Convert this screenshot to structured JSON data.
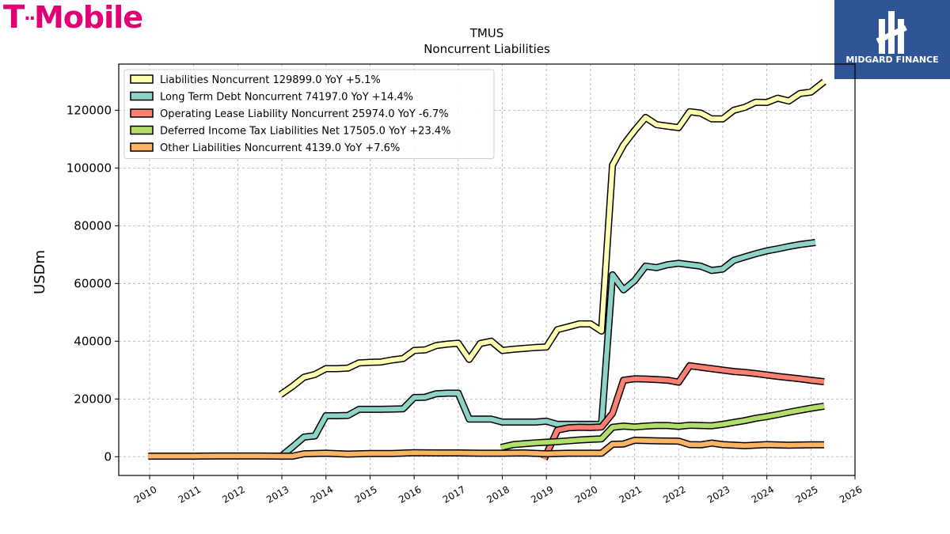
{
  "brand": {
    "logo_text": "T Mobile"
  },
  "watermark": {
    "label": "MIDGARD FINANCE",
    "color": "#2f5597"
  },
  "chart_data": {
    "type": "line",
    "title": "TMUS",
    "subtitle": "Noncurrent  Liabilities",
    "xlabel": "",
    "ylabel": "USDm",
    "xlim": [
      2009.3,
      2026.0
    ],
    "ylim": [
      -6500,
      136000
    ],
    "x_ticks": [
      2010,
      2011,
      2012,
      2013,
      2014,
      2015,
      2016,
      2017,
      2018,
      2019,
      2020,
      2021,
      2022,
      2023,
      2024,
      2025,
      2026
    ],
    "y_ticks": [
      0,
      20000,
      40000,
      60000,
      80000,
      100000,
      120000
    ],
    "y_tick_labels": [
      "0",
      "20000",
      "40000",
      "60000",
      "80000",
      "100000",
      "120000"
    ],
    "grid": true,
    "legend_position": "top-left",
    "series": [
      {
        "name": "Liabilities Noncurrent  129899.0 YoY +5.1%",
        "color": "#ffffb3",
        "x": [
          2012.97,
          2013.25,
          2013.5,
          2013.75,
          2014.0,
          2014.25,
          2014.5,
          2014.75,
          2015.0,
          2015.25,
          2015.5,
          2015.75,
          2016.0,
          2016.25,
          2016.5,
          2016.75,
          2017.0,
          2017.25,
          2017.5,
          2017.75,
          2018.0,
          2018.25,
          2018.5,
          2018.75,
          2019.0,
          2019.25,
          2019.5,
          2019.75,
          2020.0,
          2020.25,
          2020.5,
          2020.75,
          2021.0,
          2021.25,
          2021.5,
          2021.75,
          2022.0,
          2022.25,
          2022.5,
          2022.75,
          2023.0,
          2023.25,
          2023.5,
          2023.75,
          2024.0,
          2024.25,
          2024.5,
          2024.75,
          2025.0,
          2025.3
        ],
        "y": [
          21500,
          24500,
          27500,
          28500,
          30500,
          30500,
          30700,
          32500,
          32700,
          32800,
          33500,
          34000,
          36800,
          37000,
          38500,
          39000,
          39300,
          33700,
          39200,
          40000,
          36800,
          37200,
          37500,
          37800,
          38000,
          44000,
          45000,
          46000,
          46000,
          43500,
          101000,
          108000,
          113000,
          117500,
          115000,
          114500,
          114000,
          119500,
          119000,
          117000,
          117000,
          120000,
          121000,
          122800,
          122700,
          124200,
          123200,
          125800,
          126300,
          129899
        ]
      },
      {
        "name": "Long Term Debt Noncurrent  74197.0 YoY +14.4%",
        "color": "#8dd3c7",
        "x": [
          2012.97,
          2013.25,
          2013.5,
          2013.75,
          2014.0,
          2014.25,
          2014.5,
          2014.75,
          2015.0,
          2015.25,
          2015.5,
          2015.75,
          2016.0,
          2016.25,
          2016.5,
          2016.75,
          2017.0,
          2017.25,
          2017.5,
          2017.75,
          2018.0,
          2018.25,
          2018.5,
          2018.75,
          2019.0,
          2019.25,
          2019.5,
          2019.75,
          2020.0,
          2020.25,
          2020.5,
          2020.75,
          2021.0,
          2021.25,
          2021.5,
          2021.75,
          2022.0,
          2022.25,
          2022.5,
          2022.75,
          2023.0,
          2023.25,
          2023.5,
          2023.75,
          2024.0,
          2024.25,
          2024.5,
          2024.75,
          2025.1
        ],
        "y": [
          0,
          3500,
          6800,
          7200,
          14200,
          14200,
          14300,
          16400,
          16400,
          16400,
          16500,
          16600,
          20500,
          20600,
          21800,
          22000,
          22000,
          13000,
          13000,
          13000,
          12000,
          12000,
          12000,
          12000,
          12300,
          11200,
          11200,
          11200,
          11200,
          11200,
          63000,
          57800,
          61000,
          66000,
          65500,
          66500,
          67000,
          66500,
          66000,
          64500,
          65000,
          68000,
          69200,
          70300,
          71300,
          72000,
          72800,
          73500,
          74197
        ]
      },
      {
        "name": "Operating Lease Liability Noncurrent  25974.0 YoY -6.7%",
        "color": "#fb8072",
        "x": [
          2018.95,
          2019.25,
          2019.5,
          2019.75,
          2020.0,
          2020.25,
          2020.5,
          2020.75,
          2021.0,
          2021.25,
          2021.5,
          2021.75,
          2022.0,
          2022.25,
          2022.5,
          2022.75,
          2023.0,
          2023.25,
          2023.5,
          2023.75,
          2024.0,
          2024.25,
          2024.5,
          2024.75,
          2025.0,
          2025.3
        ],
        "y": [
          -800,
          9200,
          10000,
          10200,
          10100,
          10300,
          15000,
          26500,
          27000,
          26900,
          26700,
          26500,
          25800,
          31500,
          31000,
          30500,
          30000,
          29500,
          29200,
          28800,
          28300,
          27800,
          27400,
          27000,
          26500,
          25974
        ]
      },
      {
        "name": "Deferred Income Tax Liabilities Net  17505.0 YoY +23.4%",
        "color": "#b3de69",
        "x": [
          2017.97,
          2018.25,
          2018.5,
          2018.75,
          2019.0,
          2019.25,
          2019.5,
          2019.75,
          2020.0,
          2020.25,
          2020.5,
          2020.75,
          2021.0,
          2021.25,
          2021.5,
          2021.75,
          2022.0,
          2022.25,
          2022.5,
          2022.75,
          2023.0,
          2023.25,
          2023.5,
          2023.75,
          2024.0,
          2024.25,
          2024.5,
          2024.75,
          2025.0,
          2025.3
        ],
        "y": [
          3200,
          4200,
          4500,
          4800,
          5000,
          5200,
          5500,
          5800,
          6000,
          6200,
          10200,
          10600,
          10300,
          10600,
          10800,
          10800,
          10500,
          10900,
          10800,
          10700,
          11200,
          11900,
          12500,
          13300,
          13900,
          14600,
          15400,
          16100,
          16800,
          17505
        ]
      },
      {
        "name": "Other Liabilities Noncurrent  4139.0 YoY +7.6%",
        "color": "#fdb462",
        "x": [
          2009.97,
          2010.5,
          2011.0,
          2011.5,
          2012.0,
          2012.5,
          2013.0,
          2013.25,
          2013.5,
          2014.0,
          2014.5,
          2015.0,
          2015.5,
          2016.0,
          2016.5,
          2017.0,
          2017.5,
          2018.0,
          2018.5,
          2019.0,
          2019.5,
          2020.0,
          2020.25,
          2020.5,
          2020.75,
          2021.0,
          2021.5,
          2022.0,
          2022.25,
          2022.5,
          2022.75,
          2023.0,
          2023.5,
          2024.0,
          2024.5,
          2025.0,
          2025.3
        ],
        "y": [
          200,
          200,
          200,
          250,
          250,
          250,
          200,
          200,
          1000,
          1200,
          900,
          1100,
          1100,
          1400,
          1300,
          1300,
          1200,
          1200,
          1300,
          1000,
          1200,
          1200,
          1200,
          4300,
          4400,
          5700,
          5500,
          5400,
          4200,
          4100,
          4700,
          4200,
          3800,
          4200,
          4000,
          4100,
          4139
        ]
      }
    ]
  }
}
